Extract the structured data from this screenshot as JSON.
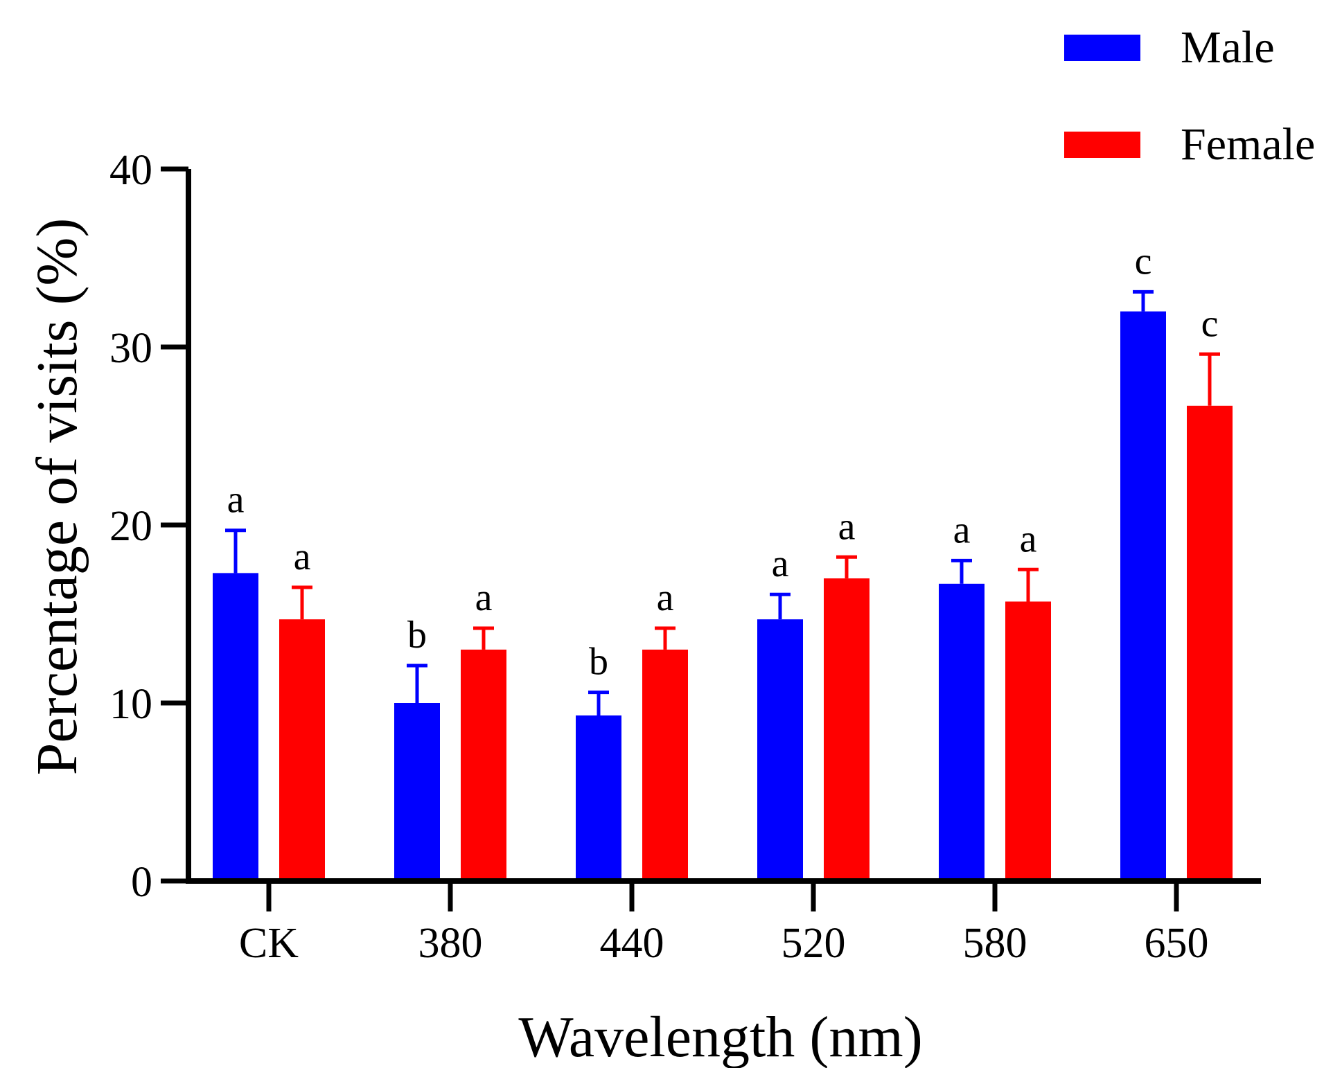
{
  "chart_data": {
    "type": "bar",
    "title": "",
    "xlabel": "Wavelength (nm)",
    "ylabel": "Percentage of visits (%)",
    "categories": [
      "CK",
      "380",
      "440",
      "520",
      "580",
      "650"
    ],
    "ylim": [
      0,
      40
    ],
    "yticks": [
      0,
      10,
      20,
      30,
      40
    ],
    "error_bars": "upper",
    "legend_position": "top-right",
    "grid": false,
    "series": [
      {
        "name": "Male",
        "color": "#0000ff",
        "values": [
          17.3,
          10.0,
          9.3,
          14.7,
          16.7,
          32.0
        ],
        "errors": [
          2.4,
          2.1,
          1.3,
          1.4,
          1.3,
          1.1
        ],
        "significance": [
          "a",
          "b",
          "b",
          "a",
          "a",
          "c"
        ]
      },
      {
        "name": "Female",
        "color": "#ff0000",
        "values": [
          14.7,
          13.0,
          13.0,
          17.0,
          15.7,
          26.7
        ],
        "errors": [
          1.8,
          1.2,
          1.2,
          1.2,
          1.8,
          2.9
        ],
        "significance": [
          "a",
          "a",
          "a",
          "a",
          "a",
          "c"
        ]
      }
    ]
  }
}
